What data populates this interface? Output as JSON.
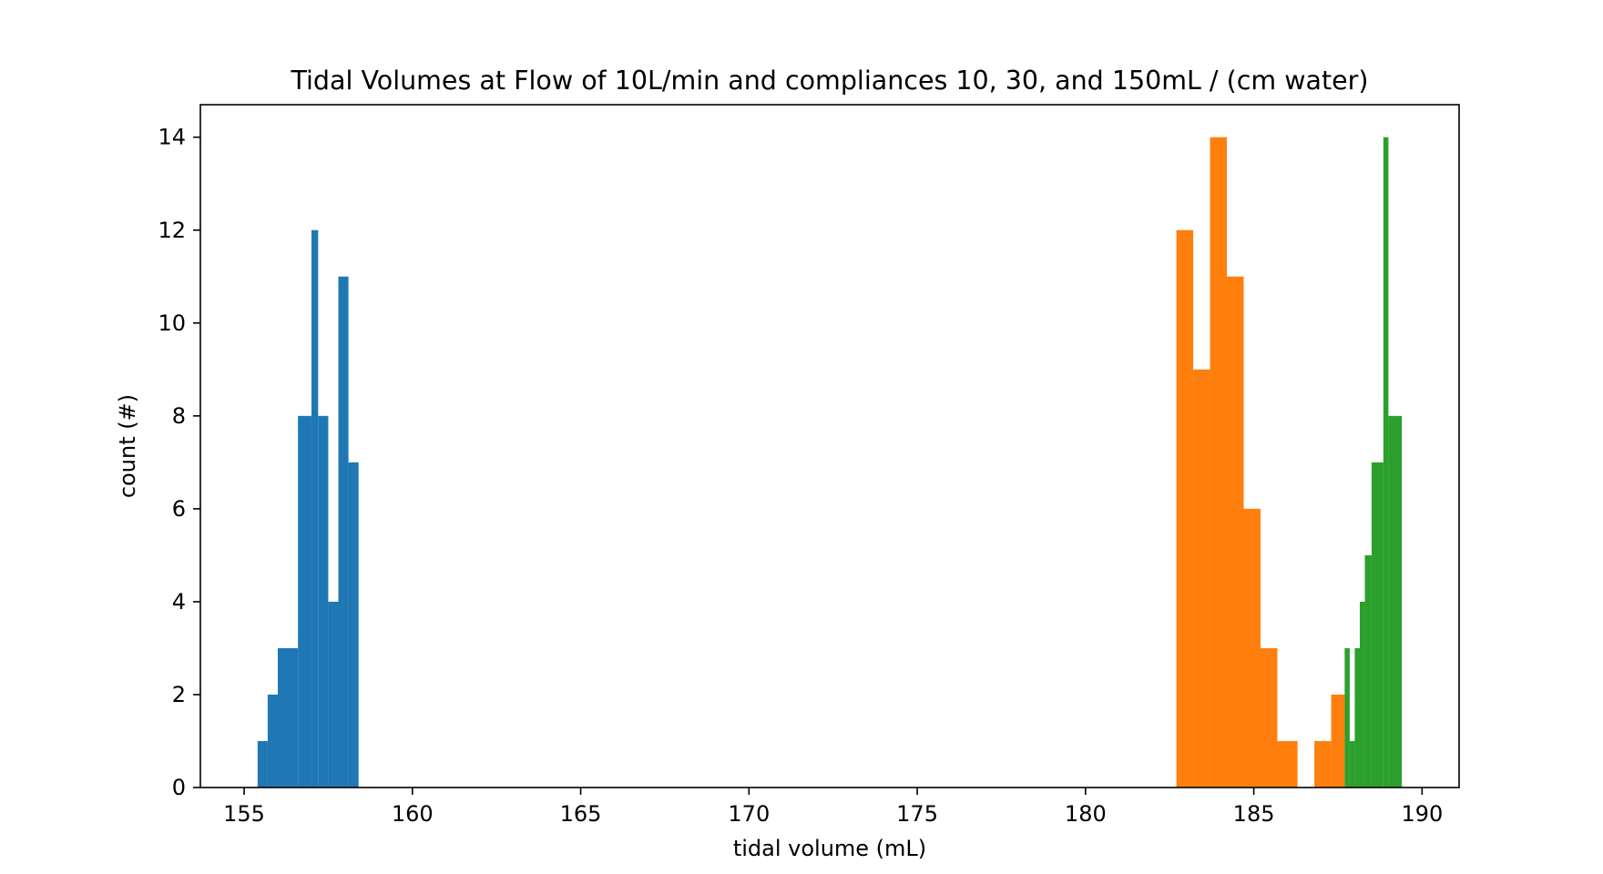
{
  "chart_data": {
    "type": "bar",
    "title": "Tidal Volumes at Flow of 10L/min and compliances 10, 30, and 150mL / (cm water)",
    "xlabel": "tidal volume (mL)",
    "ylabel": "count (#)",
    "xlim": [
      153.7,
      191.1
    ],
    "ylim": [
      0,
      14.7
    ],
    "xticks": [
      155,
      160,
      165,
      170,
      175,
      180,
      185,
      190
    ],
    "yticks": [
      0,
      2,
      4,
      6,
      8,
      10,
      12,
      14
    ],
    "grid": false,
    "legend": "none",
    "histogram": true,
    "series": [
      {
        "color": "#1f77b4",
        "bins": [
          {
            "x0": 155.4,
            "x1": 155.7,
            "count": 1
          },
          {
            "x0": 155.7,
            "x1": 156.0,
            "count": 2
          },
          {
            "x0": 156.0,
            "x1": 156.6,
            "count": 3
          },
          {
            "x0": 156.6,
            "x1": 157.0,
            "count": 8
          },
          {
            "x0": 157.0,
            "x1": 157.2,
            "count": 12
          },
          {
            "x0": 157.2,
            "x1": 157.5,
            "count": 8
          },
          {
            "x0": 157.5,
            "x1": 157.8,
            "count": 4
          },
          {
            "x0": 157.8,
            "x1": 158.1,
            "count": 11
          },
          {
            "x0": 158.1,
            "x1": 158.4,
            "count": 7
          }
        ]
      },
      {
        "color": "#ff7f0e",
        "bins": [
          {
            "x0": 182.7,
            "x1": 183.2,
            "count": 12
          },
          {
            "x0": 183.2,
            "x1": 183.7,
            "count": 9
          },
          {
            "x0": 183.7,
            "x1": 184.2,
            "count": 14
          },
          {
            "x0": 184.2,
            "x1": 184.7,
            "count": 11
          },
          {
            "x0": 184.7,
            "x1": 185.2,
            "count": 6
          },
          {
            "x0": 185.2,
            "x1": 185.7,
            "count": 3
          },
          {
            "x0": 185.7,
            "x1": 186.3,
            "count": 1
          },
          {
            "x0": 186.3,
            "x1": 186.8,
            "count": 0
          },
          {
            "x0": 186.8,
            "x1": 187.3,
            "count": 1
          },
          {
            "x0": 187.3,
            "x1": 187.7,
            "count": 2
          }
        ]
      },
      {
        "color": "#2ca02c",
        "bins": [
          {
            "x0": 187.7,
            "x1": 187.85,
            "count": 3
          },
          {
            "x0": 187.85,
            "x1": 188.0,
            "count": 1
          },
          {
            "x0": 188.0,
            "x1": 188.15,
            "count": 3
          },
          {
            "x0": 188.15,
            "x1": 188.3,
            "count": 4
          },
          {
            "x0": 188.3,
            "x1": 188.5,
            "count": 5
          },
          {
            "x0": 188.5,
            "x1": 188.85,
            "count": 7
          },
          {
            "x0": 188.85,
            "x1": 189.0,
            "count": 14
          },
          {
            "x0": 189.0,
            "x1": 189.4,
            "count": 8
          }
        ]
      }
    ]
  }
}
